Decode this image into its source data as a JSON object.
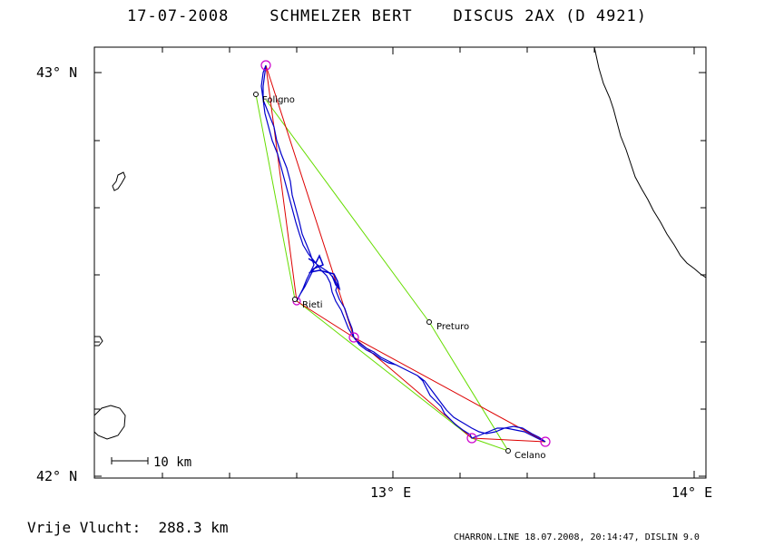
{
  "header": {
    "date": "17-07-2008",
    "pilot": "SCHMELZER BERT",
    "glider": "DISCUS 2AX (D 4921)"
  },
  "axes": {
    "lat_labels": [
      "43° N",
      "42° N"
    ],
    "lon_labels": [
      "13° E",
      "14° E"
    ]
  },
  "places": [
    {
      "name": "Foligno"
    },
    {
      "name": "Rieti"
    },
    {
      "name": "Preturo"
    },
    {
      "name": "Celano"
    }
  ],
  "scale_bar": {
    "label": "10 km"
  },
  "footer": {
    "flight_label": "Vrije Vlucht:",
    "distance": "288.3 km",
    "credits": "CHARRON.LINE 18.07.2008, 20:14:47, DISLIN 9.0"
  },
  "colors": {
    "track": "#0000cc",
    "triangle": "#dd0000",
    "task": "#66dd00",
    "turnpoint": "#cc00cc",
    "coast": "#000000"
  }
}
